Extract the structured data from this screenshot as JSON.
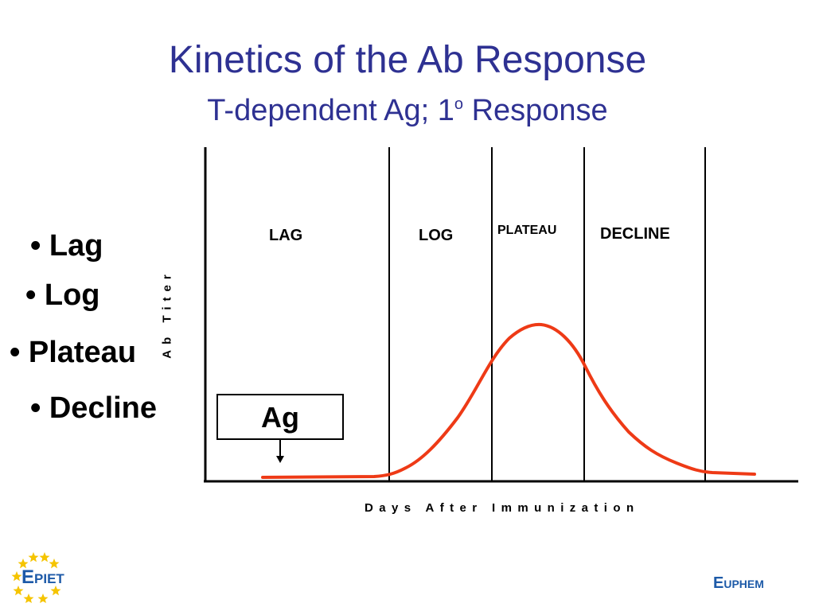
{
  "title": "Kinetics of the Ab Response",
  "subtitle": {
    "main": "T-dependent Ag; 1",
    "superscript": "o",
    "rest": " Response"
  },
  "bullets": [
    "• Lag",
    "• Log",
    "• Plateau",
    "• Decline"
  ],
  "chart": {
    "xlabel": "Days After Immunization",
    "ylabel": "Ab Titer",
    "phases": [
      "LAG",
      "LOG",
      "PLATEAU",
      "DECLINE"
    ],
    "antigen_label": "Ag",
    "curve_color": "#ee3a16"
  },
  "logos": {
    "left": "Epiet",
    "right": "Euphem"
  }
}
